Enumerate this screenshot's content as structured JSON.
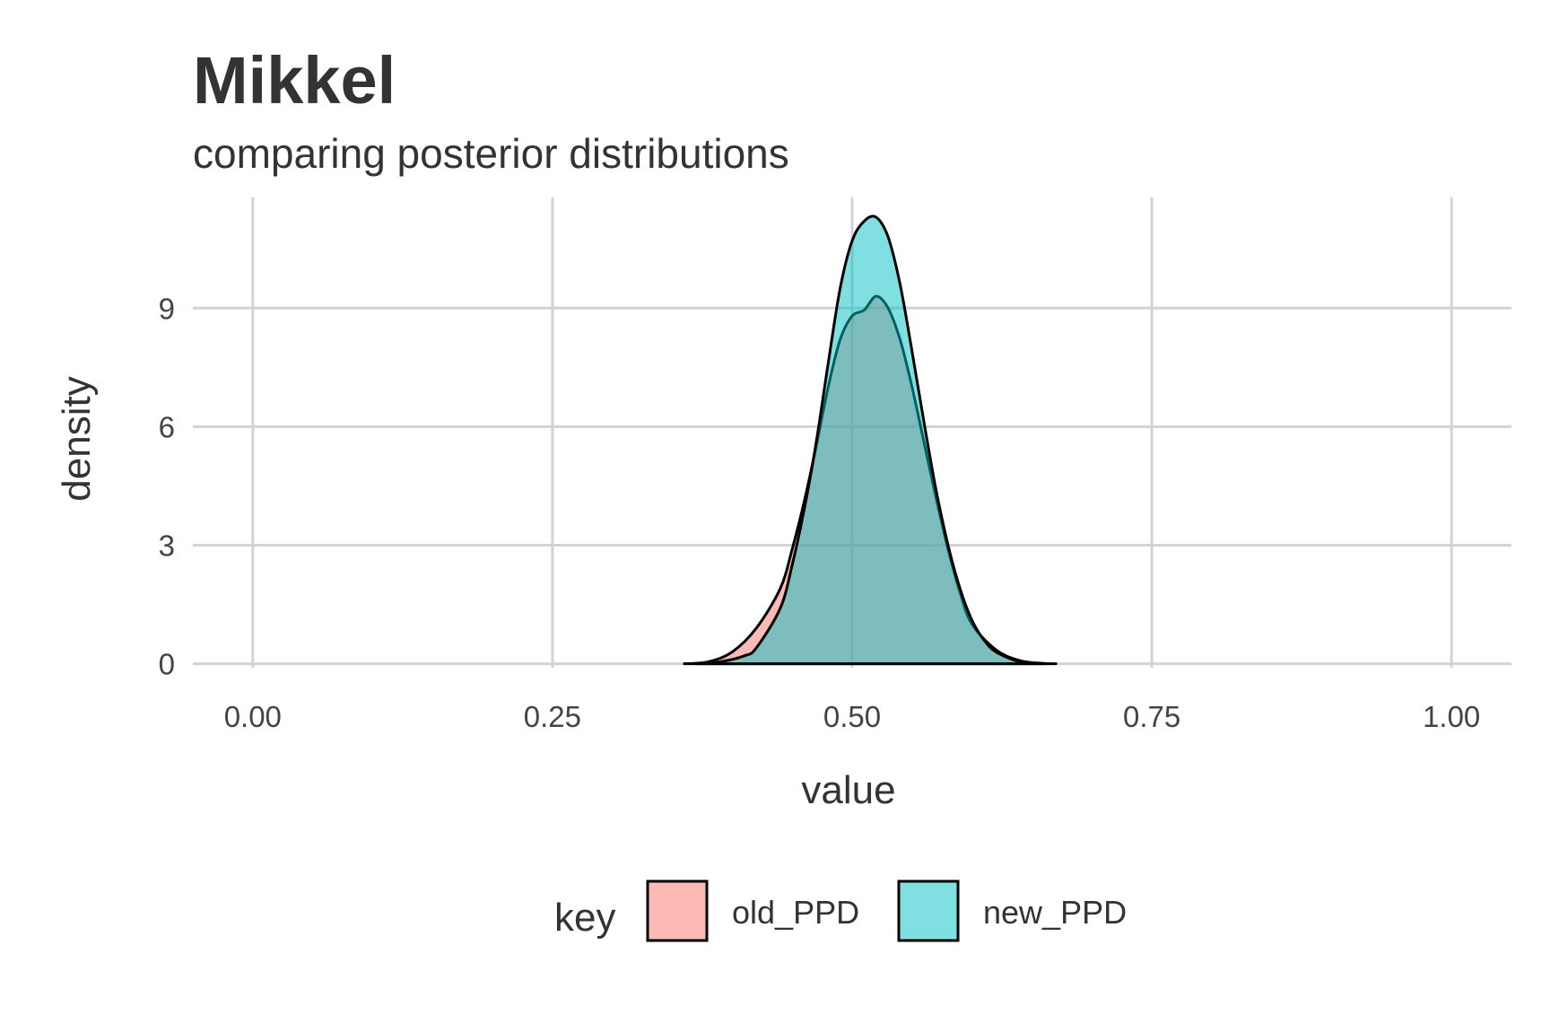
{
  "chart_data": {
    "type": "area",
    "title": "Mikkel",
    "subtitle": "comparing posterior distributions",
    "xlabel": "value",
    "ylabel": "density",
    "xlim": [
      -0.05,
      1.05
    ],
    "ylim": [
      -0.1,
      11.8
    ],
    "x_ticks": [
      0,
      0.25,
      0.5,
      0.75,
      1
    ],
    "x_tick_labels": [
      "0.00",
      "0.25",
      "0.50",
      "0.75",
      "1.00"
    ],
    "y_ticks": [
      0,
      3,
      6,
      9
    ],
    "y_tick_labels": [
      "0",
      "3",
      "6",
      "9"
    ],
    "grid": true,
    "legend_position": "bottom",
    "legend_title": "key",
    "series": [
      {
        "name": "old_PPD",
        "color": "#F8766D",
        "opacity": 0.5,
        "x": [
          0.36,
          0.38,
          0.4,
          0.42,
          0.44,
          0.45,
          0.46,
          0.47,
          0.48,
          0.49,
          0.5,
          0.51,
          0.52,
          0.53,
          0.54,
          0.55,
          0.56,
          0.57,
          0.58,
          0.59,
          0.6,
          0.62,
          0.64,
          0.66,
          0.67
        ],
        "y": [
          0.0,
          0.05,
          0.3,
          0.9,
          1.9,
          2.9,
          4.1,
          5.5,
          7.0,
          8.2,
          8.8,
          8.95,
          9.3,
          9.0,
          8.2,
          7.0,
          5.6,
          4.2,
          2.9,
          1.8,
          1.0,
          0.35,
          0.08,
          0.01,
          0.0
        ]
      },
      {
        "name": "new_PPD",
        "color": "#00BFC4",
        "opacity": 0.5,
        "x": [
          0.37,
          0.39,
          0.41,
          0.42,
          0.44,
          0.45,
          0.46,
          0.47,
          0.48,
          0.49,
          0.5,
          0.51,
          0.52,
          0.53,
          0.54,
          0.55,
          0.56,
          0.57,
          0.58,
          0.59,
          0.6,
          0.61,
          0.62,
          0.64,
          0.66
        ],
        "y": [
          0.0,
          0.05,
          0.2,
          0.4,
          1.4,
          2.5,
          3.9,
          5.6,
          7.6,
          9.5,
          10.7,
          11.2,
          11.3,
          10.8,
          9.6,
          7.9,
          6.1,
          4.4,
          3.0,
          1.9,
          1.1,
          0.6,
          0.3,
          0.05,
          0.0
        ]
      }
    ]
  }
}
